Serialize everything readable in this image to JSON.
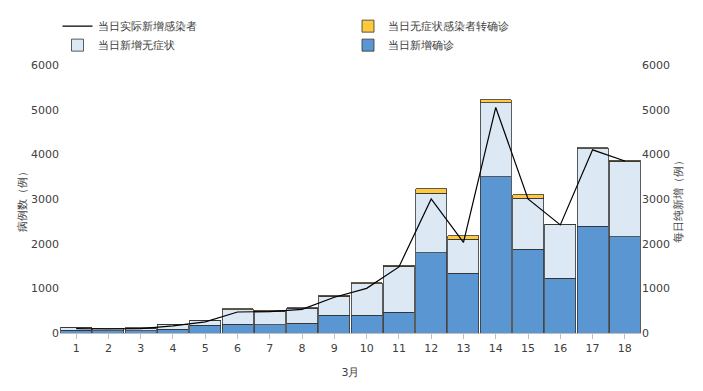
{
  "chart_data": {
    "type": "bar",
    "stacked": true,
    "legend": "top",
    "grid": false,
    "x_label": "3月",
    "y_label": "病例数（例）",
    "y2_label": "每日纯新增（例）",
    "categories": [
      "1",
      "2",
      "3",
      "4",
      "5",
      "6",
      "7",
      "8",
      "9",
      "10",
      "11",
      "12",
      "13",
      "14",
      "15",
      "16",
      "17",
      "18"
    ],
    "ylim": [
      0,
      6000
    ],
    "yticks": [
      0,
      1000,
      2000,
      3000,
      4000,
      5000,
      6000
    ],
    "y2lim": [
      0,
      6000
    ],
    "y2ticks": [
      0,
      1000,
      2000,
      3000,
      4000,
      5000,
      6000
    ],
    "series": [
      {
        "name": "当日新增确诊",
        "type": "bar",
        "color": "#5a96d2",
        "values": [
          60,
          50,
          50,
          80,
          170,
          200,
          180,
          220,
          400,
          400,
          470,
          1800,
          1340,
          3500,
          1870,
          1230,
          2390,
          2150
        ]
      },
      {
        "name": "当日新增无症状",
        "type": "bar",
        "color": "#dde8f5",
        "values": [
          60,
          50,
          60,
          100,
          110,
          320,
          310,
          330,
          420,
          700,
          1030,
          1330,
          760,
          1650,
          1150,
          1190,
          1730,
          1700
        ]
      },
      {
        "name": "当日无症状感染者转确诊",
        "type": "bar",
        "color": "#ffc83d",
        "values": [
          5,
          5,
          5,
          10,
          10,
          20,
          20,
          20,
          20,
          20,
          20,
          100,
          80,
          70,
          80,
          20,
          30,
          20
        ]
      },
      {
        "name": "当日实际新增感染者",
        "type": "line",
        "color": "#000000",
        "axis": "y2",
        "values": [
          100,
          90,
          100,
          160,
          250,
          470,
          480,
          530,
          800,
          1000,
          1480,
          3000,
          2030,
          5050,
          3000,
          2420,
          4100,
          3850
        ]
      }
    ]
  }
}
